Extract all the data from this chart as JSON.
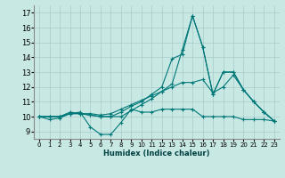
{
  "xlabel": "Humidex (Indice chaleur)",
  "xlim": [
    -0.5,
    23.5
  ],
  "ylim": [
    8.5,
    17.5
  ],
  "yticks": [
    9,
    10,
    11,
    12,
    13,
    14,
    15,
    16,
    17
  ],
  "xticks": [
    0,
    1,
    2,
    3,
    4,
    5,
    6,
    7,
    8,
    9,
    10,
    11,
    12,
    13,
    14,
    15,
    16,
    17,
    18,
    19,
    20,
    21,
    22,
    23
  ],
  "bg_color": "#c8e8e4",
  "grid_color": "#a8cccc",
  "line_color": "#007878",
  "series": [
    [
      10.0,
      9.8,
      9.9,
      10.2,
      10.3,
      9.3,
      8.8,
      8.8,
      9.6,
      10.5,
      10.3,
      10.3,
      10.5,
      10.5,
      10.5,
      10.5,
      10.0,
      10.0,
      10.0,
      10.0,
      9.8,
      9.8,
      9.8,
      9.7
    ],
    [
      10.0,
      10.0,
      10.0,
      10.3,
      10.2,
      10.2,
      10.1,
      10.2,
      10.5,
      10.8,
      11.1,
      11.4,
      11.7,
      12.0,
      12.3,
      12.3,
      12.5,
      11.6,
      12.0,
      12.8,
      11.8,
      11.0,
      10.3,
      9.7
    ],
    [
      10.0,
      10.0,
      10.0,
      10.2,
      10.2,
      10.1,
      10.0,
      10.0,
      10.3,
      10.7,
      11.0,
      11.5,
      12.0,
      13.9,
      14.2,
      16.8,
      14.7,
      11.5,
      13.0,
      13.0,
      11.8,
      11.0,
      10.3,
      9.7
    ],
    [
      10.0,
      10.0,
      10.0,
      10.2,
      10.2,
      10.1,
      10.0,
      10.0,
      10.0,
      10.4,
      10.8,
      11.2,
      11.7,
      12.2,
      14.5,
      16.8,
      14.7,
      11.5,
      13.0,
      13.0,
      11.8,
      11.0,
      10.3,
      9.7
    ]
  ]
}
